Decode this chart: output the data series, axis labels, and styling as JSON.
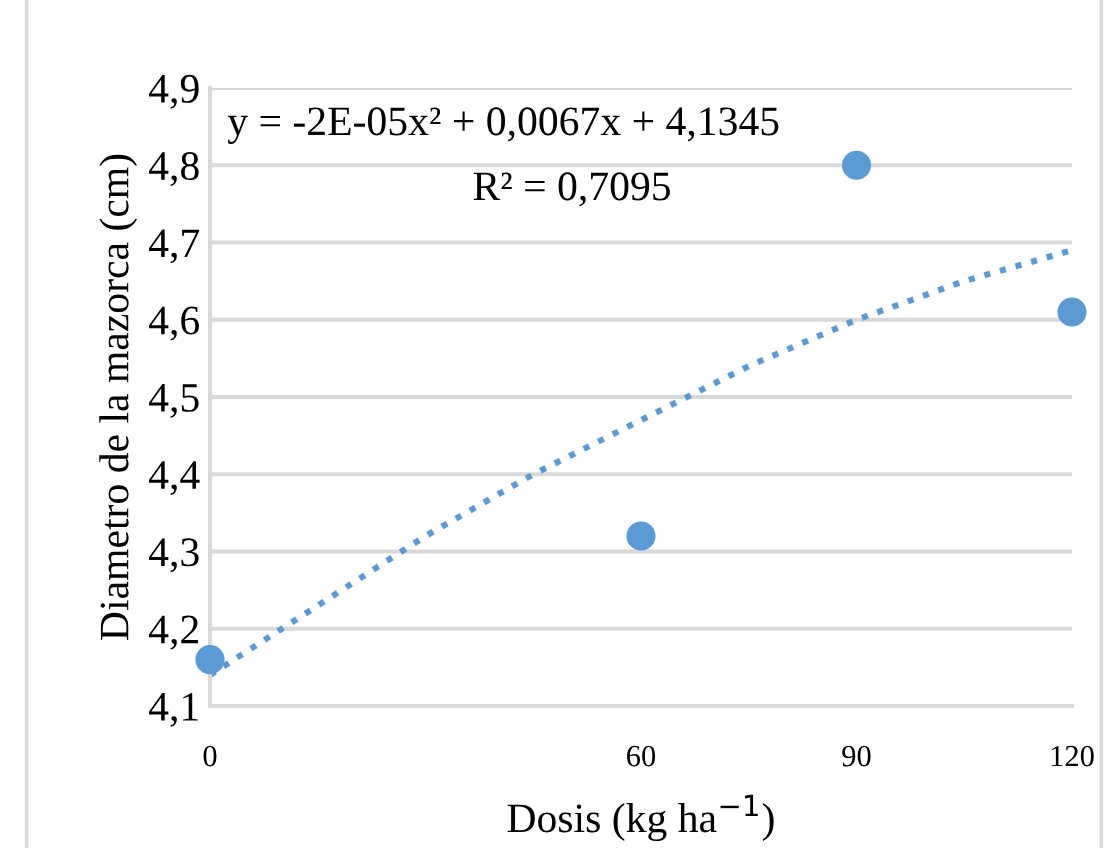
{
  "chart_data": {
    "type": "scatter",
    "xlabel": "Dosis (kg ha$^{−1}$)",
    "ylabel": "Diametro de la mazorca (cm)",
    "series": [
      {
        "color": "#5b9bd5",
        "x": [
          0,
          60,
          90,
          120
        ],
        "values": [
          4.16,
          4.32,
          4.8,
          4.61
        ],
        "marker": "circle"
      },
      {
        "type": "line",
        "color": "#5b9bd5",
        "line_style": "dotted",
        "x": [
          0,
          15,
          30,
          45,
          60,
          75,
          90,
          105,
          120
        ],
        "values": [
          4.14,
          4.23,
          4.32,
          4.4,
          4.47,
          4.54,
          4.6,
          4.65,
          4.69
        ]
      }
    ],
    "annotations": [
      "y = -2E-05x² + 0,0067x + 4,1345",
      "R² = 0,7095"
    ],
    "xlim": [
      0,
      120
    ],
    "xticks": [
      0,
      60,
      90,
      120
    ],
    "ylim": [
      4.1,
      4.9
    ],
    "yticks": [
      {
        "value": 4.1,
        "label": "4,1"
      },
      {
        "value": 4.2,
        "label": "4,2"
      },
      {
        "value": 4.3,
        "label": "4,3"
      },
      {
        "value": 4.4,
        "label": "4,4"
      },
      {
        "value": 4.5,
        "label": "4,5"
      },
      {
        "value": 4.6,
        "label": "4,6"
      },
      {
        "value": 4.7,
        "label": "4,7"
      },
      {
        "value": 4.8,
        "label": "4,8"
      },
      {
        "value": 4.9,
        "label": "4,9"
      }
    ],
    "grid": "y",
    "legend": false
  }
}
